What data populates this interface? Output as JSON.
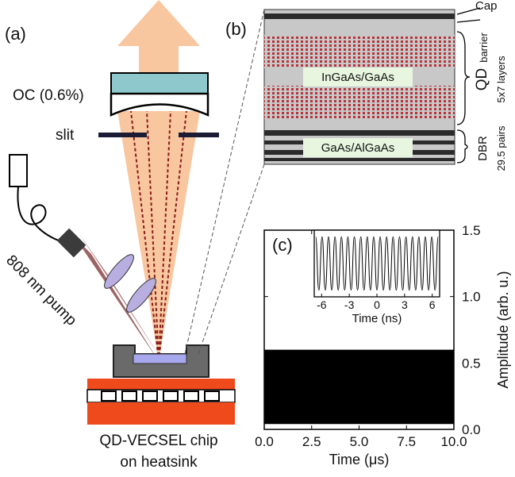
{
  "panels": {
    "a": "(a)",
    "b": "(b)",
    "c": "(c)"
  },
  "setup": {
    "output_coupler": "OC (0.6%)",
    "slit": "slit",
    "pump": "808 nm pump",
    "chip_line1": "QD-VECSEL chip",
    "chip_line2": "on heatsink"
  },
  "structure": {
    "cap": "Cap",
    "barrier": "barrier",
    "qd": "QD",
    "qd_layers": "5x7 layers",
    "dbr": "DBR",
    "dbr_pairs": "29.5 pairs",
    "qd_material": "InGaAs/GaAs",
    "dbr_material": "GaAs/AlGaAs"
  },
  "chart_data": [
    {
      "type": "band",
      "x_label": "Time (μs)",
      "y_label": "Amplitude (arb. u.)",
      "color": "#000000",
      "x": [
        0,
        10
      ],
      "low": [
        0.04,
        0.04
      ],
      "high": [
        0.6,
        0.6
      ],
      "xlim": [
        0,
        10
      ],
      "ylim": [
        0,
        1.5
      ],
      "xticks": [
        {
          "value": 0,
          "label": "0.0"
        },
        2.5,
        {
          "value": 5,
          "label": "5.0"
        },
        7.5,
        {
          "value": 10,
          "label": "10.0"
        }
      ],
      "yticks": [
        {
          "value": 0,
          "label": "0.0"
        },
        0.5,
        {
          "value": 1,
          "label": "1.0"
        },
        1.5
      ]
    },
    {
      "type": "line",
      "x_label": "Time (ns)",
      "color": "#000000",
      "x": [
        -6.65,
        -6.3,
        -5.95,
        -5.6,
        -5.25,
        -4.9,
        -4.55,
        -4.2,
        -3.85,
        -3.5,
        -3.15,
        -2.8,
        -2.45,
        -2.1,
        -1.75,
        -1.4,
        -1.05,
        -0.7,
        -0.35,
        0,
        0.35,
        0.7,
        1.05,
        1.4,
        1.75,
        2.1,
        2.45,
        2.8,
        3.15,
        3.5,
        3.85,
        4.2,
        4.55,
        4.9,
        5.25,
        5.6,
        5.95,
        6.3,
        6.65
      ],
      "values": [
        1,
        -1,
        1,
        -1,
        1,
        -1,
        1,
        -1,
        1,
        -1,
        1,
        -1,
        1,
        -1,
        1,
        -1,
        1,
        -1,
        1,
        -1,
        1,
        -1,
        1,
        -1,
        1,
        -1,
        1,
        -1,
        1,
        -1,
        1,
        -1,
        1,
        -1,
        1,
        -1,
        1,
        -1,
        1
      ],
      "xlim": [
        -6.8,
        6.8
      ],
      "ylim": [
        -1.25,
        1.25
      ],
      "xticks": [
        -6,
        -3,
        0,
        3,
        6
      ]
    }
  ]
}
